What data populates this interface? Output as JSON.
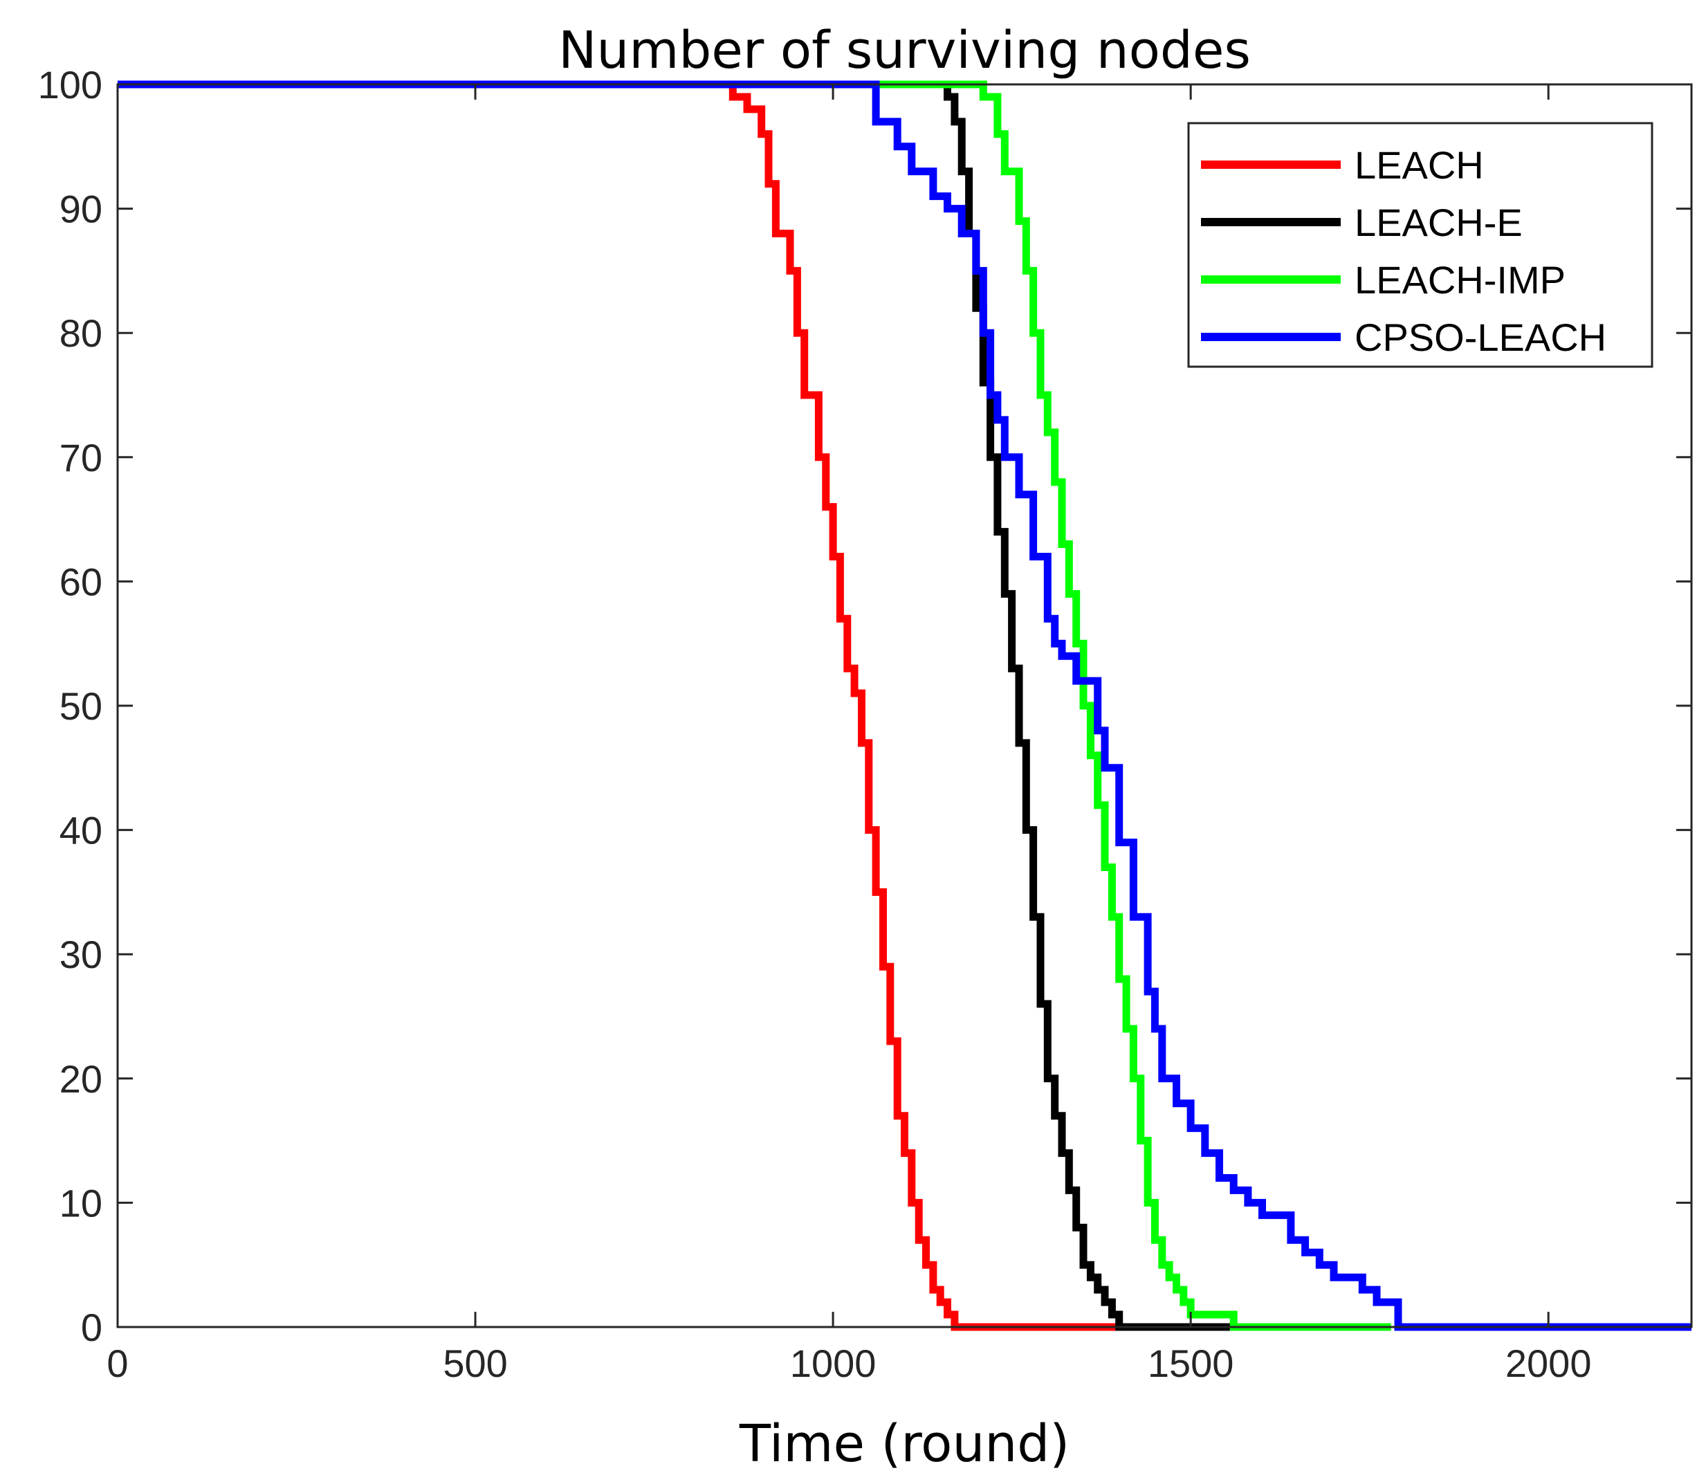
{
  "chart_data": {
    "type": "line",
    "title": "Number of surviving nodes",
    "xlabel": "Time (round)",
    "ylabel": "",
    "xlim": [
      0,
      2200
    ],
    "ylim": [
      0,
      100
    ],
    "xticks": [
      0,
      500,
      1000,
      1500,
      2000
    ],
    "yticks": [
      0,
      10,
      20,
      30,
      40,
      50,
      60,
      70,
      80,
      90,
      100
    ],
    "grid": false,
    "legend_position": "top-right",
    "series": [
      {
        "name": "LEACH",
        "color": "#ff0000",
        "x": [
          0,
          830,
          860,
          880,
          900,
          910,
          920,
          940,
          950,
          960,
          980,
          990,
          1000,
          1010,
          1020,
          1030,
          1040,
          1050,
          1060,
          1070,
          1080,
          1090,
          1100,
          1110,
          1120,
          1130,
          1140,
          1150,
          1160,
          1170,
          1180,
          1190,
          1200,
          1210,
          1400
        ],
        "y": [
          100,
          100,
          99,
          98,
          96,
          92,
          88,
          85,
          80,
          75,
          70,
          66,
          62,
          57,
          53,
          51,
          47,
          40,
          35,
          29,
          23,
          17,
          14,
          10,
          7,
          5,
          3,
          2,
          1,
          0,
          0,
          0,
          0,
          0,
          0
        ]
      },
      {
        "name": "LEACH-E",
        "color": "#000000",
        "x": [
          0,
          1140,
          1160,
          1170,
          1180,
          1190,
          1200,
          1210,
          1220,
          1230,
          1240,
          1250,
          1260,
          1270,
          1280,
          1290,
          1300,
          1310,
          1320,
          1330,
          1340,
          1350,
          1360,
          1370,
          1380,
          1390,
          1400,
          1410,
          1600
        ],
        "y": [
          100,
          100,
          99,
          97,
          93,
          88,
          82,
          76,
          70,
          64,
          59,
          53,
          47,
          40,
          33,
          26,
          20,
          17,
          14,
          11,
          8,
          5,
          4,
          3,
          2,
          1,
          0,
          0,
          0
        ]
      },
      {
        "name": "LEACH-IMP",
        "color": "#00ff00",
        "x": [
          0,
          1060,
          1190,
          1210,
          1230,
          1240,
          1260,
          1270,
          1280,
          1290,
          1300,
          1310,
          1320,
          1330,
          1340,
          1350,
          1360,
          1370,
          1380,
          1390,
          1400,
          1410,
          1420,
          1430,
          1440,
          1450,
          1460,
          1470,
          1480,
          1490,
          1500,
          1520,
          1560,
          1600,
          1780
        ],
        "y": [
          100,
          100,
          100,
          99,
          96,
          93,
          89,
          85,
          80,
          75,
          72,
          68,
          63,
          59,
          55,
          50,
          46,
          42,
          37,
          33,
          28,
          24,
          20,
          15,
          10,
          7,
          5,
          4,
          3,
          2,
          1,
          1,
          0,
          0,
          0
        ]
      },
      {
        "name": "CPSO-LEACH",
        "color": "#0000ff",
        "x": [
          0,
          1050,
          1060,
          1090,
          1110,
          1140,
          1160,
          1180,
          1200,
          1210,
          1220,
          1230,
          1240,
          1260,
          1280,
          1300,
          1310,
          1320,
          1340,
          1370,
          1380,
          1400,
          1420,
          1440,
          1450,
          1460,
          1480,
          1500,
          1520,
          1540,
          1560,
          1580,
          1600,
          1640,
          1660,
          1680,
          1700,
          1740,
          1760,
          1790,
          2200
        ],
        "y": [
          100,
          100,
          97,
          95,
          93,
          91,
          90,
          88,
          85,
          80,
          75,
          73,
          70,
          67,
          62,
          57,
          55,
          54,
          52,
          48,
          45,
          39,
          33,
          27,
          24,
          20,
          18,
          16,
          14,
          12,
          11,
          10,
          9,
          7,
          6,
          5,
          4,
          3,
          2,
          0,
          0
        ]
      }
    ]
  }
}
